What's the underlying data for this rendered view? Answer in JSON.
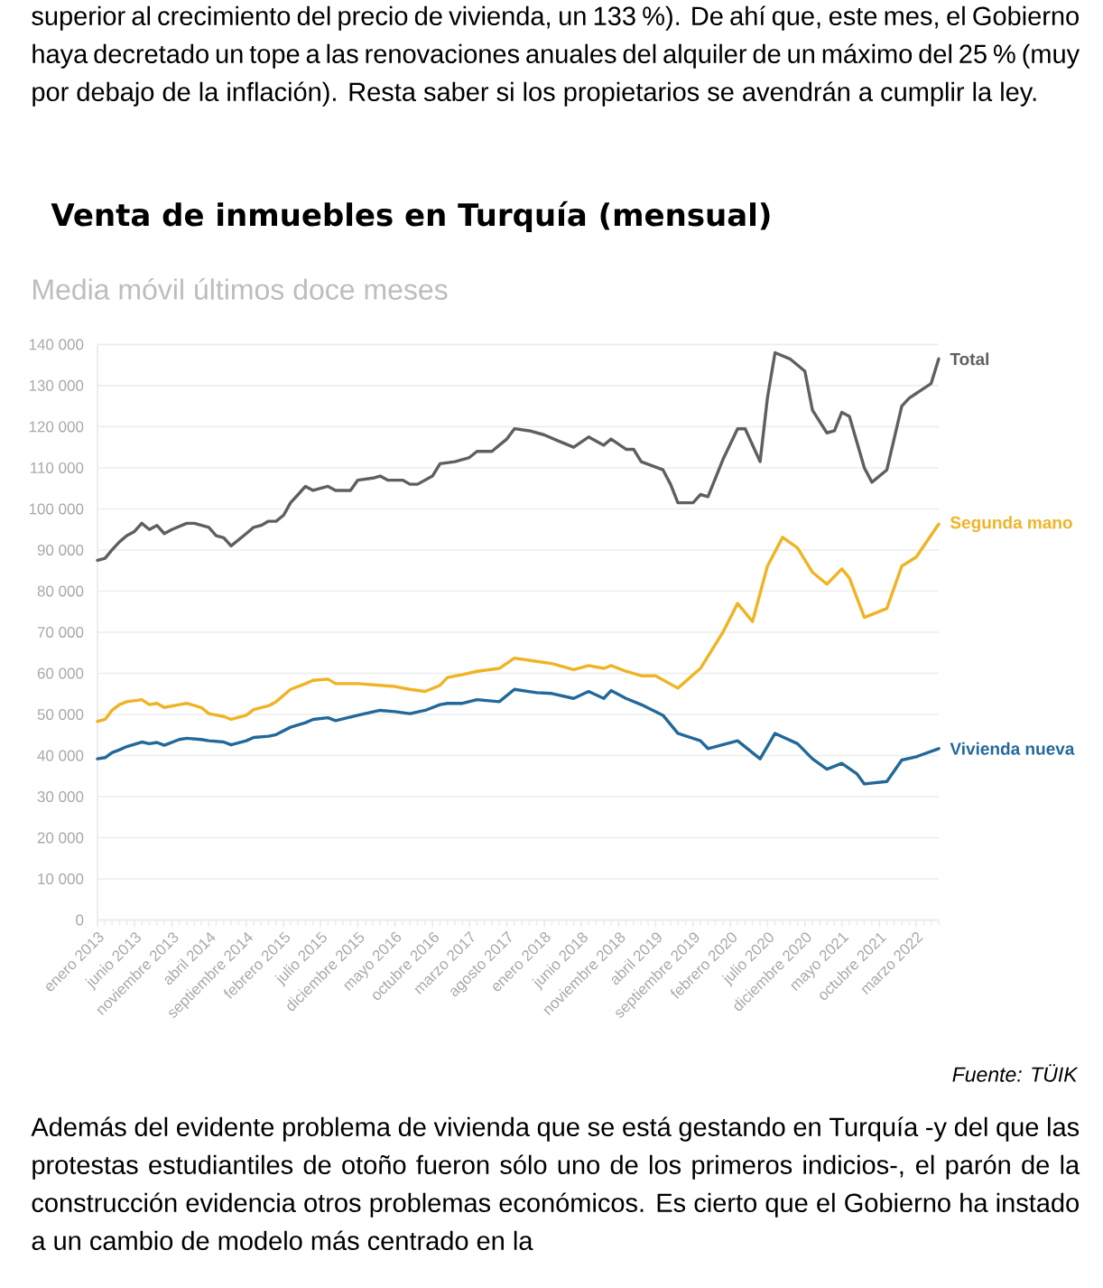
{
  "chart_data": {
    "type": "line",
    "title": "Venta de inmuebles en Turquía (mensual)",
    "subtitle": "Media móvil últimos doce meses",
    "annotations": [
      "superior al crecimiento del precio de vivienda, un 133 %). De ahí que, este mes, el Gobierno haya decretado un tope a las renovaciones anuales del alquiler de un máximo del 25 % (muy por debajo de la inflación). Resta saber si los propietarios se avendrán a cumplir la ley.",
      "Fuente: TÜIK",
      "Además del evidente problema de vivienda que se está gestando en Turquía -y del que las protestas estudiantiles de otoño fueron sólo uno de los primeros indicios-, el parón de la construcción evidencia otros problemas económicos. Es cierto que el Gobierno ha instado a un cambio de modelo más centrado en la"
    ],
    "xlim": [
      "2013-01",
      "2022-06"
    ],
    "ylim": [
      0,
      140000
    ],
    "xticks": [
      {
        "value": "2013-01",
        "label": "enero 2013"
      },
      {
        "value": "2013-06",
        "label": "junio 2013"
      },
      {
        "value": "2013-11",
        "label": "noviembre 2013"
      },
      {
        "value": "2014-04",
        "label": "abril 2014"
      },
      {
        "value": "2014-09",
        "label": "septiembre 2014"
      },
      {
        "value": "2015-02",
        "label": "febrero 2015"
      },
      {
        "value": "2015-07",
        "label": "julio 2015"
      },
      {
        "value": "2015-12",
        "label": "diciembre 2015"
      },
      {
        "value": "2016-05",
        "label": "mayo 2016"
      },
      {
        "value": "2016-10",
        "label": "octubre 2016"
      },
      {
        "value": "2017-03",
        "label": "marzo 2017"
      },
      {
        "value": "2017-08",
        "label": "agosto 2017"
      },
      {
        "value": "2018-01",
        "label": "enero 2018"
      },
      {
        "value": "2018-06",
        "label": "junio 2018"
      },
      {
        "value": "2018-11",
        "label": "noviembre 2018"
      },
      {
        "value": "2019-04",
        "label": "abril 2019"
      },
      {
        "value": "2019-09",
        "label": "septiembre 2019"
      },
      {
        "value": "2020-02",
        "label": "febrero 2020"
      },
      {
        "value": "2020-07",
        "label": "julio 2020"
      },
      {
        "value": "2020-12",
        "label": "diciembre 2020"
      },
      {
        "value": "2021-05",
        "label": "mayo 2021"
      },
      {
        "value": "2021-10",
        "label": "octubre 2021"
      },
      {
        "value": "2022-03",
        "label": "marzo 2022"
      }
    ],
    "yticks": [
      0,
      {
        "value": 10000,
        "label": "10 000"
      },
      {
        "value": 20000,
        "label": "20 000"
      },
      {
        "value": 30000,
        "label": "30 000"
      },
      {
        "value": 40000,
        "label": "40 000"
      },
      {
        "value": 50000,
        "label": "50 000"
      },
      {
        "value": 60000,
        "label": "60 000"
      },
      {
        "value": 70000,
        "label": "70 000"
      },
      {
        "value": 80000,
        "label": "80 000"
      },
      {
        "value": 90000,
        "label": "90 000"
      },
      {
        "value": 100000,
        "label": "100 000"
      },
      {
        "value": 110000,
        "label": "110 000"
      },
      {
        "value": 120000,
        "label": "120 000"
      },
      {
        "value": 130000,
        "label": "130 000"
      },
      {
        "value": 140000,
        "label": "140 000"
      }
    ],
    "grid": "y",
    "series": [
      {
        "name": "Total",
        "color": "#5f5f5f",
        "x": [
          "2013-01",
          "2013-02",
          "2013-03",
          "2013-04",
          "2013-05",
          "2013-06",
          "2013-07",
          "2013-08",
          "2013-09",
          "2013-10",
          "2013-11",
          "2014-01",
          "2014-02",
          "2014-04",
          "2014-05",
          "2014-06",
          "2014-07",
          "2014-08",
          "2014-09",
          "2014-10",
          "2014-11",
          "2014-12",
          "2015-01",
          "2015-02",
          "2015-03",
          "2015-04",
          "2015-05",
          "2015-06",
          "2015-08",
          "2015-09",
          "2015-11",
          "2015-12",
          "2016-02",
          "2016-03",
          "2016-04",
          "2016-06",
          "2016-07",
          "2016-08",
          "2016-10",
          "2016-11",
          "2017-01",
          "2017-03",
          "2017-04",
          "2017-06",
          "2017-07",
          "2017-08",
          "2017-09",
          "2017-11",
          "2018-01",
          "2018-03",
          "2018-05",
          "2018-07",
          "2018-09",
          "2018-10",
          "2018-12",
          "2019-01",
          "2019-02",
          "2019-05",
          "2019-06",
          "2019-07",
          "2019-09",
          "2019-10",
          "2019-11",
          "2020-01",
          "2020-03",
          "2020-04",
          "2020-06",
          "2020-07",
          "2020-08",
          "2020-10",
          "2020-12",
          "2021-01",
          "2021-03",
          "2021-04",
          "2021-05",
          "2021-06",
          "2021-08",
          "2021-09",
          "2021-11",
          "2022-01",
          "2022-02",
          "2022-05",
          "2022-06"
        ],
        "values": [
          87500,
          88000,
          90000,
          92000,
          93500,
          94500,
          96500,
          95000,
          96000,
          94000,
          95000,
          96500,
          96500,
          95500,
          93500,
          93000,
          91000,
          92500,
          94000,
          95500,
          96000,
          97000,
          97000,
          98500,
          101500,
          103500,
          105500,
          104500,
          105500,
          104500,
          104500,
          107000,
          107500,
          108000,
          107000,
          107000,
          106000,
          106000,
          108000,
          111000,
          111500,
          112500,
          114000,
          114000,
          115500,
          117000,
          119500,
          119000,
          118000,
          116500,
          115000,
          117500,
          115500,
          117000,
          114500,
          114500,
          111500,
          109500,
          106000,
          101500,
          101500,
          103500,
          103000,
          112000,
          119500,
          119500,
          111500,
          127000,
          138000,
          136500,
          133500,
          124000,
          118500,
          119000,
          123500,
          122500,
          110000,
          106500,
          109500,
          125000,
          127000,
          130500,
          136500
        ]
      },
      {
        "name": "Segunda mano",
        "color": "#f0b323",
        "x": [
          "2013-01",
          "2013-02",
          "2013-03",
          "2013-04",
          "2013-05",
          "2013-07",
          "2013-08",
          "2013-09",
          "2013-10",
          "2013-12",
          "2014-01",
          "2014-03",
          "2014-04",
          "2014-06",
          "2014-07",
          "2014-09",
          "2014-10",
          "2014-12",
          "2015-01",
          "2015-03",
          "2015-05",
          "2015-06",
          "2015-08",
          "2015-09",
          "2015-12",
          "2016-03",
          "2016-05",
          "2016-07",
          "2016-09",
          "2016-11",
          "2016-12",
          "2017-02",
          "2017-04",
          "2017-07",
          "2017-09",
          "2017-12",
          "2018-02",
          "2018-05",
          "2018-07",
          "2018-09",
          "2018-10",
          "2018-12",
          "2019-02",
          "2019-04",
          "2019-07",
          "2019-10",
          "2020-01",
          "2020-03",
          "2020-05",
          "2020-07",
          "2020-09",
          "2020-11",
          "2021-01",
          "2021-03",
          "2021-05",
          "2021-06",
          "2021-08",
          "2021-11",
          "2022-01",
          "2022-03",
          "2022-06"
        ],
        "values": [
          48300,
          48800,
          51000,
          52400,
          53100,
          53600,
          52400,
          52700,
          51700,
          52400,
          52700,
          51700,
          50200,
          49500,
          48800,
          49800,
          51200,
          52100,
          53100,
          56100,
          57500,
          58300,
          58600,
          57500,
          57500,
          57100,
          56800,
          56100,
          55600,
          57100,
          59000,
          59700,
          60500,
          61200,
          63700,
          62900,
          62400,
          60900,
          61900,
          61200,
          61900,
          60500,
          59400,
          59400,
          56400,
          61200,
          70000,
          77000,
          72600,
          86100,
          93100,
          90500,
          84600,
          81700,
          85400,
          83200,
          73600,
          75800,
          86100,
          88300,
          96300
        ]
      },
      {
        "name": "Vivienda nueva",
        "color": "#22689a",
        "x": [
          "2013-01",
          "2013-02",
          "2013-03",
          "2013-04",
          "2013-05",
          "2013-07",
          "2013-08",
          "2013-09",
          "2013-10",
          "2013-12",
          "2014-01",
          "2014-03",
          "2014-04",
          "2014-06",
          "2014-07",
          "2014-09",
          "2014-10",
          "2014-12",
          "2015-01",
          "2015-03",
          "2015-05",
          "2015-06",
          "2015-08",
          "2015-09",
          "2015-12",
          "2016-03",
          "2016-05",
          "2016-07",
          "2016-09",
          "2016-11",
          "2016-12",
          "2017-02",
          "2017-04",
          "2017-07",
          "2017-09",
          "2017-12",
          "2018-02",
          "2018-05",
          "2018-07",
          "2018-09",
          "2018-10",
          "2018-12",
          "2019-02",
          "2019-05",
          "2019-07",
          "2019-10",
          "2019-11",
          "2020-03",
          "2020-06",
          "2020-08",
          "2020-11",
          "2021-01",
          "2021-03",
          "2021-05",
          "2021-07",
          "2021-08",
          "2021-11",
          "2022-01",
          "2022-03",
          "2022-06"
        ],
        "values": [
          39200,
          39500,
          40700,
          41400,
          42200,
          43300,
          42900,
          43200,
          42500,
          43900,
          44200,
          43900,
          43600,
          43300,
          42600,
          43600,
          44400,
          44700,
          45100,
          46900,
          48000,
          48800,
          49200,
          48500,
          49800,
          51000,
          50700,
          50200,
          51000,
          52400,
          52700,
          52700,
          53600,
          53100,
          56100,
          55300,
          55100,
          53900,
          55600,
          53900,
          55800,
          53900,
          52400,
          49800,
          45400,
          43600,
          41700,
          43600,
          39200,
          45400,
          42900,
          39200,
          36700,
          38100,
          35600,
          33100,
          33700,
          38900,
          39700,
          41700
        ]
      }
    ]
  }
}
